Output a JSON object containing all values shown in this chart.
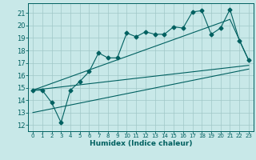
{
  "xlabel": "Humidex (Indice chaleur)",
  "bg_color": "#c8e8e8",
  "grid_color": "#a0c8c8",
  "line_color": "#006060",
  "marker": "D",
  "marker_size": 2.5,
  "xlim": [
    -0.5,
    23.5
  ],
  "ylim": [
    11.5,
    21.8
  ],
  "yticks": [
    12,
    13,
    14,
    15,
    16,
    17,
    18,
    19,
    20,
    21
  ],
  "xticks": [
    0,
    1,
    2,
    3,
    4,
    5,
    6,
    7,
    8,
    9,
    10,
    11,
    12,
    13,
    14,
    15,
    16,
    17,
    18,
    19,
    20,
    21,
    22,
    23
  ],
  "main_series": [
    [
      0,
      14.8
    ],
    [
      1,
      14.8
    ],
    [
      2,
      13.8
    ],
    [
      3,
      12.2
    ],
    [
      4,
      14.8
    ],
    [
      5,
      15.5
    ],
    [
      6,
      16.3
    ],
    [
      7,
      17.8
    ],
    [
      8,
      17.4
    ],
    [
      9,
      17.4
    ],
    [
      10,
      19.4
    ],
    [
      11,
      19.1
    ],
    [
      12,
      19.5
    ],
    [
      13,
      19.3
    ],
    [
      14,
      19.3
    ],
    [
      15,
      19.9
    ],
    [
      16,
      19.8
    ],
    [
      17,
      21.1
    ],
    [
      18,
      21.2
    ],
    [
      19,
      19.3
    ],
    [
      20,
      19.8
    ],
    [
      21,
      21.3
    ],
    [
      22,
      18.8
    ],
    [
      23,
      17.2
    ]
  ],
  "lower_line": [
    [
      0,
      14.8
    ],
    [
      23,
      16.8
    ]
  ],
  "upper_line": [
    [
      0,
      14.8
    ],
    [
      21,
      20.5
    ],
    [
      23,
      17.2
    ]
  ],
  "diag_line": [
    [
      0,
      13.0
    ],
    [
      23,
      16.5
    ]
  ]
}
